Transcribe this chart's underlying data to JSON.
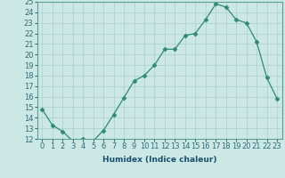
{
  "title": "",
  "xlabel": "Humidex (Indice chaleur)",
  "ylabel": "",
  "x": [
    0,
    1,
    2,
    3,
    4,
    5,
    6,
    7,
    8,
    9,
    10,
    11,
    12,
    13,
    14,
    15,
    16,
    17,
    18,
    19,
    20,
    21,
    22,
    23
  ],
  "y": [
    14.8,
    13.3,
    12.7,
    11.8,
    12.0,
    11.8,
    12.8,
    14.3,
    15.9,
    17.5,
    18.0,
    19.0,
    20.5,
    20.5,
    21.8,
    22.0,
    23.3,
    24.8,
    24.5,
    23.3,
    23.0,
    21.2,
    17.8,
    15.8
  ],
  "line_color": "#2e8b72",
  "marker": "D",
  "marker_size": 2.5,
  "bg_color": "#cce8e4",
  "grid_color": "#aacfc8",
  "ylim": [
    12,
    25
  ],
  "xlim": [
    -0.5,
    23.5
  ],
  "yticks": [
    12,
    13,
    14,
    15,
    16,
    17,
    18,
    19,
    20,
    21,
    22,
    23,
    24,
    25
  ],
  "xticks": [
    0,
    1,
    2,
    3,
    4,
    5,
    6,
    7,
    8,
    9,
    10,
    11,
    12,
    13,
    14,
    15,
    16,
    17,
    18,
    19,
    20,
    21,
    22,
    23
  ],
  "label_fontsize": 6.5,
  "tick_fontsize": 6,
  "tick_color": "#2e6b78",
  "xlabel_color": "#1a4f6e",
  "spine_color": "#5a9e98"
}
